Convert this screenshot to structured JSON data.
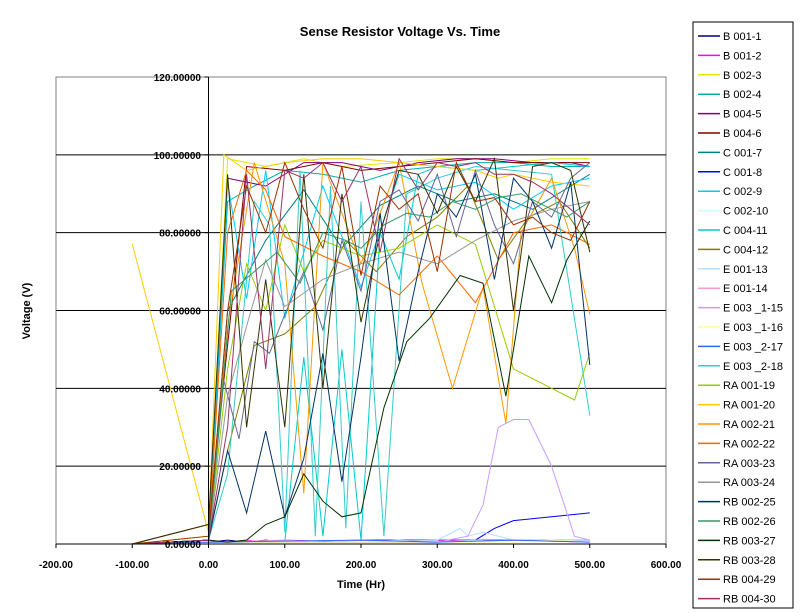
{
  "chart_data": {
    "type": "line",
    "title": "Sense Resistor Voltage Vs. Time",
    "xlabel": "Time (Hr)",
    "ylabel": "Voltage (V)",
    "xlim": [
      -200,
      600
    ],
    "ylim": [
      0,
      120
    ],
    "xticks": [
      "-200.00",
      "-100.00",
      "0.00",
      "100.00",
      "200.00",
      "300.00",
      "400.00",
      "500.00",
      "600.00"
    ],
    "yticks": [
      "0.00000",
      "20.00000",
      "40.00000",
      "60.00000",
      "80.00000",
      "100.00000",
      "120.00000"
    ],
    "grid": "horizontal",
    "legend_position": "right",
    "series": [
      {
        "name": "B 001-1",
        "color": "#000080",
        "x": [
          -100,
          0,
          25,
          50,
          75,
          100,
          200,
          300,
          400,
          500
        ],
        "y": [
          0,
          0.5,
          1,
          0.5,
          1,
          0.5,
          1,
          1,
          1,
          1
        ]
      },
      {
        "name": "B 001-2",
        "color": "#ff00ff",
        "x": [
          -100,
          0,
          25,
          50,
          75,
          100,
          200,
          300,
          400,
          500
        ],
        "y": [
          0,
          1,
          0.5,
          1,
          0.5,
          1,
          0.5,
          1,
          1,
          0.5
        ]
      },
      {
        "name": "B 002-3",
        "color": "#e6e600",
        "x": [
          -100,
          0,
          25,
          75,
          125,
          175,
          250,
          300,
          350,
          400,
          450,
          500
        ],
        "y": [
          0,
          2,
          99,
          97,
          99,
          97,
          98,
          99,
          99,
          98,
          99,
          99
        ]
      },
      {
        "name": "B 002-4",
        "color": "#00b0b0",
        "x": [
          -100,
          0,
          25,
          60,
          100,
          150,
          200,
          250,
          300,
          350,
          400,
          450,
          500
        ],
        "y": [
          0,
          1,
          88,
          92,
          96,
          95,
          93,
          96,
          97,
          98,
          98,
          97,
          97
        ]
      },
      {
        "name": "B 004-5",
        "color": "#800080",
        "x": [
          -100,
          0,
          25,
          75,
          125,
          175,
          225,
          275,
          325,
          375,
          425,
          475,
          500
        ],
        "y": [
          0,
          1,
          94,
          92,
          98,
          98,
          96,
          98,
          99,
          99,
          98,
          98,
          97
        ]
      },
      {
        "name": "B 004-6",
        "color": "#800000",
        "x": [
          -100,
          0,
          50,
          100,
          150,
          200,
          250,
          300,
          350,
          400,
          450,
          500
        ],
        "y": [
          0,
          5,
          97,
          96,
          98,
          96,
          97,
          98,
          99,
          98,
          98,
          98
        ]
      },
      {
        "name": "C 001-7",
        "color": "#008080",
        "x": [
          -100,
          0,
          25,
          75,
          125,
          175,
          225,
          275,
          325,
          375,
          425,
          475,
          500
        ],
        "y": [
          0,
          0.5,
          60,
          78,
          91,
          76,
          87,
          92,
          88,
          90,
          86,
          92,
          95
        ]
      },
      {
        "name": "C 001-8",
        "color": "#0000ff",
        "x": [
          -100,
          0,
          300,
          350,
          375,
          400,
          450,
          500
        ],
        "y": [
          0,
          0.5,
          0.5,
          1,
          4,
          6,
          7,
          8
        ]
      },
      {
        "name": "C 002-9",
        "color": "#00ccff",
        "x": [
          -100,
          0,
          25,
          50,
          75,
          100,
          150,
          200,
          250,
          300,
          350,
          400,
          450,
          500
        ],
        "y": [
          0,
          1,
          93,
          63,
          96,
          58,
          92,
          66,
          95,
          91,
          93,
          86,
          92,
          94
        ]
      },
      {
        "name": "C 002-10",
        "color": "#ccffff",
        "x": [
          -100,
          0,
          100,
          150,
          200,
          250,
          300,
          350,
          400,
          450,
          500
        ],
        "y": [
          0,
          0.5,
          0.5,
          1,
          0.5,
          1,
          0.5,
          1,
          0.5,
          1,
          0.5
        ]
      },
      {
        "name": "C 004-11",
        "color": "#00cccc",
        "x": [
          -100,
          0,
          100,
          125,
          150,
          175,
          200,
          225,
          250,
          275,
          300,
          350,
          400,
          450,
          500
        ],
        "y": [
          0,
          0.5,
          0.5,
          48,
          2,
          50,
          1,
          80,
          68,
          95,
          97,
          96,
          97,
          98,
          97
        ]
      },
      {
        "name": "C 004-12",
        "color": "#808000",
        "x": [
          -100,
          0,
          25,
          60,
          100,
          140,
          180,
          220,
          260,
          300,
          340,
          380,
          420,
          460,
          500
        ],
        "y": [
          0,
          1,
          24,
          51,
          54,
          61,
          78,
          70,
          79,
          84,
          92,
          73,
          84,
          88,
          76
        ]
      },
      {
        "name": "E 001-13",
        "color": "#b3e0ff",
        "x": [
          -100,
          0,
          200,
          300,
          330,
          340,
          360,
          400,
          500
        ],
        "y": [
          0,
          0.5,
          0.5,
          1,
          4,
          2,
          3,
          1,
          1
        ]
      },
      {
        "name": "E 001-14",
        "color": "#ff99cc",
        "x": [
          -100,
          0,
          100,
          150,
          200,
          300,
          400,
          500
        ],
        "y": [
          0,
          0.5,
          1,
          0.5,
          1,
          0.5,
          1,
          0.5
        ]
      },
      {
        "name": "E 003 _1-15",
        "color": "#cc99ff",
        "x": [
          -100,
          0,
          300,
          340,
          360,
          380,
          400,
          420,
          450,
          480,
          500
        ],
        "y": [
          0,
          0.5,
          0.5,
          2,
          10,
          30,
          32,
          32,
          20,
          2,
          1
        ]
      },
      {
        "name": "E 003 _1-16",
        "color": "#ffff99",
        "x": [
          -100,
          0,
          400,
          450,
          500
        ],
        "y": [
          0,
          0.5,
          0.5,
          1,
          0.5
        ]
      },
      {
        "name": "E 003 _2-17",
        "color": "#3366ff",
        "x": [
          -100,
          0,
          200,
          300,
          400,
          500
        ],
        "y": [
          0,
          0.5,
          1,
          0.5,
          1,
          0.5
        ]
      },
      {
        "name": "E 003 _2-18",
        "color": "#33cccc",
        "x": [
          -100,
          0,
          25,
          60,
          80,
          100,
          120,
          140,
          160,
          180,
          200,
          230,
          260,
          300,
          350,
          400,
          450,
          500
        ],
        "y": [
          0,
          1,
          18,
          88,
          82,
          3,
          96,
          2,
          92,
          4,
          88,
          2,
          90,
          94,
          97,
          96,
          95,
          33
        ]
      },
      {
        "name": "RA 001-19",
        "color": "#99cc00",
        "x": [
          -100,
          0,
          25,
          50,
          75,
          100,
          125,
          150,
          200,
          250,
          300,
          350,
          400,
          450,
          480,
          500
        ],
        "y": [
          0,
          1,
          45,
          72,
          60,
          82,
          70,
          78,
          74,
          76,
          82,
          77,
          45,
          40,
          37,
          49
        ]
      },
      {
        "name": "RA 001-20",
        "color": "#ffcc00",
        "x": [
          -100,
          0,
          20,
          50,
          100,
          150,
          200,
          250,
          300,
          350,
          380,
          400,
          450,
          500
        ],
        "y": [
          77,
          3,
          100,
          96,
          98,
          99,
          99,
          98,
          97,
          96,
          94,
          95,
          93,
          92
        ]
      },
      {
        "name": "RA 002-21",
        "color": "#ff9900",
        "x": [
          -100,
          0,
          25,
          60,
          100,
          125,
          150,
          200,
          250,
          280,
          320,
          360,
          390,
          410,
          450,
          480,
          500
        ],
        "y": [
          0,
          1,
          56,
          98,
          72,
          13,
          98,
          72,
          98,
          67,
          40,
          66,
          31,
          80,
          94,
          76,
          59
        ]
      },
      {
        "name": "RA 002-22",
        "color": "#ff6600",
        "x": [
          -100,
          0,
          25,
          50,
          75,
          100,
          150,
          200,
          250,
          300,
          350,
          400,
          450,
          500
        ],
        "y": [
          0,
          1,
          80,
          96,
          91,
          79,
          74,
          70,
          64,
          74,
          62,
          80,
          82,
          77
        ]
      },
      {
        "name": "RA 003-23",
        "color": "#666699",
        "x": [
          -100,
          0,
          20,
          40,
          60,
          80,
          100,
          125,
          150,
          175,
          200,
          225,
          250,
          275,
          300,
          325,
          350,
          375,
          400,
          425,
          450,
          475,
          500
        ],
        "y": [
          0,
          1,
          42,
          27,
          52,
          49,
          59,
          70,
          55,
          78,
          65,
          88,
          91,
          83,
          95,
          79,
          96,
          82,
          72,
          88,
          84,
          94,
          98
        ]
      },
      {
        "name": "RA 003-24",
        "color": "#969696",
        "x": [
          -100,
          0,
          25,
          50,
          75,
          100,
          150,
          200,
          250,
          300,
          350,
          400,
          450,
          500
        ],
        "y": [
          0,
          1,
          38,
          56,
          73,
          61,
          68,
          72,
          75,
          72,
          78,
          83,
          86,
          88
        ]
      },
      {
        "name": "RB 002-25",
        "color": "#003366",
        "x": [
          -100,
          0,
          25,
          50,
          75,
          100,
          125,
          150,
          175,
          200,
          225,
          250,
          275,
          300,
          325,
          350,
          375,
          400,
          425,
          450,
          475,
          500
        ],
        "y": [
          0,
          1,
          24,
          8,
          29,
          7,
          22,
          49,
          16,
          48,
          85,
          47,
          70,
          90,
          84,
          95,
          68,
          94,
          88,
          76,
          93,
          46
        ]
      },
      {
        "name": "RB 002-26",
        "color": "#339966",
        "x": [
          -100,
          0,
          30,
          60,
          90,
          120,
          150,
          180,
          200,
          230,
          260,
          290,
          320,
          350,
          380,
          410,
          440,
          470,
          500
        ],
        "y": [
          0,
          1,
          65,
          70,
          75,
          67,
          80,
          78,
          76,
          82,
          85,
          84,
          88,
          86,
          89,
          90,
          87,
          84,
          88
        ]
      },
      {
        "name": "RB 003-27",
        "color": "#003300",
        "x": [
          -100,
          0,
          25,
          50,
          75,
          100,
          125,
          150,
          175,
          200,
          230,
          260,
          290,
          330,
          360,
          390,
          420,
          450,
          470,
          500
        ],
        "y": [
          0,
          1,
          0.5,
          1,
          5,
          7,
          18,
          11,
          7,
          8,
          35,
          52,
          58,
          69,
          67,
          38,
          74,
          62,
          73,
          83
        ]
      },
      {
        "name": "RB 003-28",
        "color": "#333300",
        "x": [
          -100,
          0,
          25,
          50,
          75,
          100,
          125,
          150,
          175,
          200,
          225,
          250,
          275,
          300,
          325,
          350,
          375,
          400,
          425,
          450,
          475,
          500
        ],
        "y": [
          0,
          5,
          95,
          30,
          68,
          30,
          95,
          40,
          90,
          57,
          80,
          96,
          95,
          85,
          97,
          88,
          99,
          60,
          97,
          98,
          96,
          75
        ]
      },
      {
        "name": "RB 004-29",
        "color": "#993300",
        "x": [
          -100,
          0,
          25,
          50,
          75,
          100,
          125,
          150,
          175,
          200,
          225,
          250,
          275,
          300,
          325,
          350,
          375,
          400,
          425,
          450,
          475,
          500
        ],
        "y": [
          0,
          2,
          60,
          92,
          80,
          98,
          86,
          76,
          97,
          69,
          92,
          86,
          90,
          70,
          98,
          88,
          89,
          82,
          84,
          80,
          78,
          88
        ]
      },
      {
        "name": "RB 004-30",
        "color": "#993366",
        "x": [
          -100,
          0,
          25,
          50,
          75,
          100,
          125,
          150,
          175,
          200,
          225,
          250,
          275,
          300,
          325,
          350,
          375,
          400,
          425,
          450,
          475,
          500
        ],
        "y": [
          0,
          1,
          30,
          95,
          45,
          96,
          94,
          98,
          88,
          97,
          75,
          99,
          91,
          98,
          97,
          98,
          95,
          95,
          93,
          90,
          86,
          82
        ]
      }
    ]
  }
}
